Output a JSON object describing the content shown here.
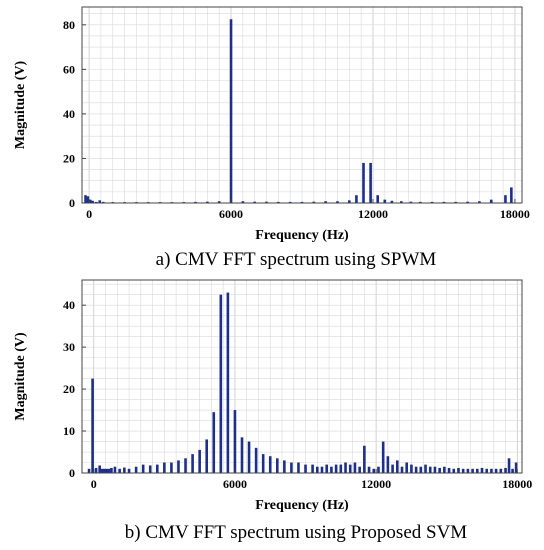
{
  "chart_data": [
    {
      "type": "bar",
      "caption": "a) CMV FFT spectrum using SPWM",
      "xlabel": "Frequency (Hz)",
      "ylabel": "Magnitude (V)",
      "xlim": [
        -300,
        18300
      ],
      "ylim": [
        0,
        88
      ],
      "xticks": [
        0,
        6000,
        12000,
        18000
      ],
      "xtick_labels": [
        "0",
        "6000",
        "12000",
        "18000"
      ],
      "yticks": [
        0,
        20,
        40,
        60,
        80
      ],
      "ytick_labels": [
        "0",
        "20",
        "40",
        "60",
        "80"
      ],
      "grid": true,
      "color": "#1c2f8a",
      "x": [
        -150,
        -50,
        50,
        150,
        300,
        450,
        600,
        1000,
        1500,
        2000,
        2500,
        3000,
        3500,
        4000,
        4500,
        5000,
        5500,
        6000,
        6500,
        7000,
        7500,
        8000,
        8500,
        9000,
        9500,
        10000,
        10500,
        11000,
        11300,
        11600,
        11900,
        12200,
        12500,
        12800,
        13200,
        13600,
        14000,
        14500,
        15000,
        15500,
        16000,
        16500,
        17000,
        17600,
        17850
      ],
      "values": [
        3.5,
        3,
        1.5,
        1,
        0.5,
        1.2,
        0.5,
        0.4,
        0.4,
        0.4,
        0.4,
        0.4,
        0.4,
        0.4,
        0.5,
        0.6,
        0.8,
        82.5,
        0.8,
        0.6,
        0.6,
        0.5,
        0.5,
        0.5,
        0.6,
        0.8,
        0.8,
        1.2,
        3.5,
        18,
        18,
        3.5,
        1.5,
        1,
        0.8,
        0.6,
        0.5,
        0.5,
        0.5,
        0.5,
        0.6,
        0.8,
        1.5,
        3.5,
        7
      ]
    },
    {
      "type": "bar",
      "caption": "b) CMV FFT spectrum using Proposed SVM",
      "xlabel": "Frequency (Hz)",
      "ylabel": "Magnitude (V)",
      "xlim": [
        -500,
        18200
      ],
      "ylim": [
        0,
        46
      ],
      "xticks": [
        0,
        6000,
        12000,
        18000
      ],
      "xtick_labels": [
        "0",
        "6000",
        "12000",
        "18000"
      ],
      "yticks": [
        0,
        10,
        20,
        30,
        40
      ],
      "ytick_labels": [
        "0",
        "10",
        "20",
        "30",
        "40"
      ],
      "grid": true,
      "color": "#1c2f8a",
      "x": [
        -200,
        -50,
        100,
        250,
        350,
        450,
        550,
        650,
        750,
        900,
        1100,
        1300,
        1500,
        1800,
        2100,
        2400,
        2700,
        3000,
        3300,
        3600,
        3900,
        4200,
        4500,
        4800,
        5100,
        5400,
        5700,
        6000,
        6300,
        6600,
        6900,
        7200,
        7500,
        7800,
        8100,
        8400,
        8700,
        9000,
        9300,
        9500,
        9700,
        9900,
        10100,
        10300,
        10500,
        10700,
        10900,
        11100,
        11300,
        11500,
        11700,
        11900,
        12100,
        12300,
        12500,
        12700,
        12900,
        13100,
        13300,
        13500,
        13700,
        13900,
        14100,
        14300,
        14500,
        14700,
        14900,
        15100,
        15300,
        15500,
        15700,
        15900,
        16100,
        16300,
        16500,
        16700,
        16900,
        17100,
        17300,
        17500,
        17650,
        17800,
        17950
      ],
      "values": [
        1,
        22.5,
        1.2,
        1.8,
        1,
        1,
        1,
        1,
        1.2,
        1.5,
        1,
        1.3,
        1,
        1.5,
        2,
        1.8,
        2,
        2.5,
        2.5,
        3,
        3.5,
        4.5,
        5.5,
        8,
        14.5,
        42.5,
        43,
        15,
        8.5,
        7.5,
        6,
        4.5,
        4,
        3.5,
        3,
        2.5,
        2.5,
        2,
        2,
        1.5,
        1.5,
        2,
        1.5,
        2,
        2,
        2.5,
        2,
        2.5,
        1.5,
        6.5,
        1.5,
        1,
        1.5,
        7.5,
        4,
        2,
        3,
        1.5,
        2.5,
        2,
        1.5,
        1.5,
        2,
        1.5,
        1.5,
        1.2,
        1.5,
        1.2,
        1,
        1.2,
        1,
        1,
        1,
        1,
        1.2,
        1,
        1,
        1,
        1,
        1.2,
        3.5,
        1,
        2.5
      ]
    }
  ]
}
